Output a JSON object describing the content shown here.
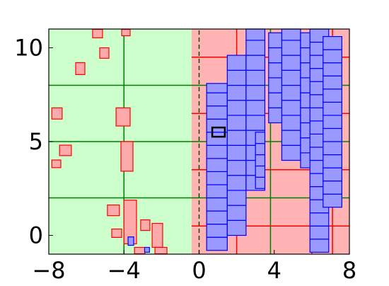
{
  "chart_data": {
    "type": "partition",
    "xlim": [
      -8,
      8
    ],
    "ylim": [
      -1,
      11
    ],
    "xticks": [
      {
        "value": -8,
        "label": "−8"
      },
      {
        "value": -4,
        "label": "−4"
      },
      0,
      4,
      8
    ],
    "yticks": [
      0,
      5,
      10
    ],
    "regions": [
      {
        "box": [
          -8,
          -1,
          -0.4,
          11
        ],
        "color": "#ccffcc"
      },
      {
        "box": [
          -0.4,
          -1,
          8,
          11
        ],
        "color": "#ffb3b3"
      }
    ],
    "lines": [
      {
        "at": -4,
        "orient": "v",
        "from": -1,
        "to": 11,
        "color": "#008000",
        "dashed": false
      },
      {
        "at": 3.8,
        "orient": "v",
        "from": -1,
        "to": 11,
        "color": "#008000",
        "dashed": false
      },
      {
        "at": 0,
        "orient": "v",
        "from": -1,
        "to": 11,
        "color": "#005000",
        "dashed": true
      },
      {
        "at": 2.0,
        "orient": "v",
        "from": -1,
        "to": 11,
        "color": "#ff0000",
        "dashed": false
      },
      {
        "at": 6.0,
        "orient": "v",
        "from": -1,
        "to": 11,
        "color": "#ff0000",
        "dashed": false
      },
      {
        "at": 7.1,
        "orient": "v",
        "from": -1,
        "to": 11,
        "color": "#ff0000",
        "dashed": false
      },
      {
        "at": 9.5,
        "orient": "h",
        "from": -0.4,
        "to": 8,
        "color": "#ff0000",
        "dashed": false
      },
      {
        "at": 6.5,
        "orient": "h",
        "from": -0.4,
        "to": 8,
        "color": "#ff0000",
        "dashed": false
      },
      {
        "at": 3.5,
        "orient": "h",
        "from": -0.4,
        "to": 8,
        "color": "#ff0000",
        "dashed": false
      },
      {
        "at": 0.5,
        "orient": "h",
        "from": -0.4,
        "to": 8,
        "color": "#ff0000",
        "dashed": false
      },
      {
        "at": 8,
        "orient": "h",
        "from": -8,
        "to": 8,
        "color": "#008000",
        "dashed": false
      },
      {
        "at": 5,
        "orient": "h",
        "from": -8,
        "to": 8,
        "color": "#008000",
        "dashed": false
      },
      {
        "at": 2,
        "orient": "h",
        "from": -8,
        "to": 8,
        "color": "#008000",
        "dashed": false
      }
    ],
    "columns": [
      {
        "x": [
          0.4,
          1.5
        ],
        "edges": [
          -0.8,
          -0.1,
          0.6,
          1.3,
          2.0,
          2.7,
          3.4,
          4.1,
          4.8,
          5.5,
          6.2,
          6.9,
          7.6,
          8.1
        ]
      },
      {
        "x": [
          1.5,
          2.5
        ],
        "edges": [
          0.0,
          0.8,
          1.6,
          2.4,
          3.2,
          4.0,
          4.8,
          5.6,
          6.4,
          7.2,
          8.0,
          8.8,
          9.6
        ]
      },
      {
        "x": [
          2.5,
          3.5
        ],
        "edges": [
          2.4,
          3.2,
          4.0,
          4.8,
          5.6,
          6.4,
          7.2,
          8.0,
          8.8,
          9.6,
          10.4,
          11
        ]
      },
      {
        "x": [
          3.0,
          3.5
        ],
        "edges": [
          2.5,
          3.1,
          3.7,
          4.3,
          4.9,
          5.5
        ]
      },
      {
        "x": [
          3.7,
          4.7
        ],
        "edges": [
          6.0,
          6.8,
          7.6,
          8.4,
          9.2,
          10.0,
          10.8
        ]
      },
      {
        "x": [
          4.4,
          5.4
        ],
        "edges": [
          4.0,
          4.8,
          5.6,
          6.4,
          7.2,
          8.0,
          8.8,
          9.6,
          10.4,
          11
        ]
      },
      {
        "x": [
          5.4,
          6.2
        ],
        "edges": [
          3.6,
          4.4,
          5.2,
          6.0,
          6.8,
          7.6,
          8.4,
          9.2,
          10.0,
          10.8
        ]
      },
      {
        "x": [
          5.9,
          6.9
        ],
        "edges": [
          -0.9,
          -0.2,
          0.5,
          1.2,
          1.9,
          2.6,
          3.3,
          4.0,
          4.7,
          5.4,
          6.1,
          6.8,
          7.5,
          8.2,
          8.9,
          9.6,
          10.3,
          11
        ]
      },
      {
        "x": [
          6.6,
          7.6
        ],
        "edges": [
          1.5,
          2.2,
          2.9,
          3.6,
          4.3,
          5.0,
          5.7,
          6.4,
          7.1,
          7.8,
          8.5,
          9.2,
          9.9,
          10.6
        ]
      }
    ],
    "column_color": "#9999ff",
    "column_stroke": "#0000ff",
    "boxes": [
      [
        -5.67,
        10.53,
        -5.14,
        10.98
      ],
      [
        -4.12,
        10.64,
        -3.67,
        10.98
      ],
      [
        -5.29,
        9.44,
        -4.8,
        10.0
      ],
      [
        -6.57,
        8.57,
        -6.08,
        9.21
      ],
      [
        -7.84,
        6.2,
        -7.29,
        6.8
      ],
      [
        -4.42,
        5.83,
        -3.67,
        6.8
      ],
      [
        -7.43,
        4.25,
        -6.8,
        4.81
      ],
      [
        -7.84,
        3.61,
        -7.36,
        4.02
      ],
      [
        -4.16,
        3.42,
        -3.52,
        5.0
      ],
      [
        -4.88,
        1.05,
        -4.24,
        1.62
      ],
      [
        -4.0,
        -0.45,
        -3.33,
        1.88
      ],
      [
        -4.65,
        -0.11,
        -4.12,
        0.34
      ],
      [
        -3.11,
        0.26,
        -2.62,
        0.83
      ],
      [
        -2.5,
        -0.64,
        -1.94,
        0.64
      ],
      [
        -3.44,
        -0.98,
        -2.88,
        -0.64
      ],
      [
        -2.35,
        -0.98,
        -1.71,
        -0.64
      ]
    ],
    "box_color": "#ffaaaa",
    "box_stroke": "#ff0000",
    "small_blue": [
      [
        -3.78,
        -0.53,
        -3.48,
        -0.08
      ],
      [
        -2.9,
        -0.9,
        -2.64,
        -0.64
      ]
    ],
    "marker": [
      0.7,
      5.26,
      1.37,
      5.75
    ],
    "marker_color": "#000000"
  }
}
